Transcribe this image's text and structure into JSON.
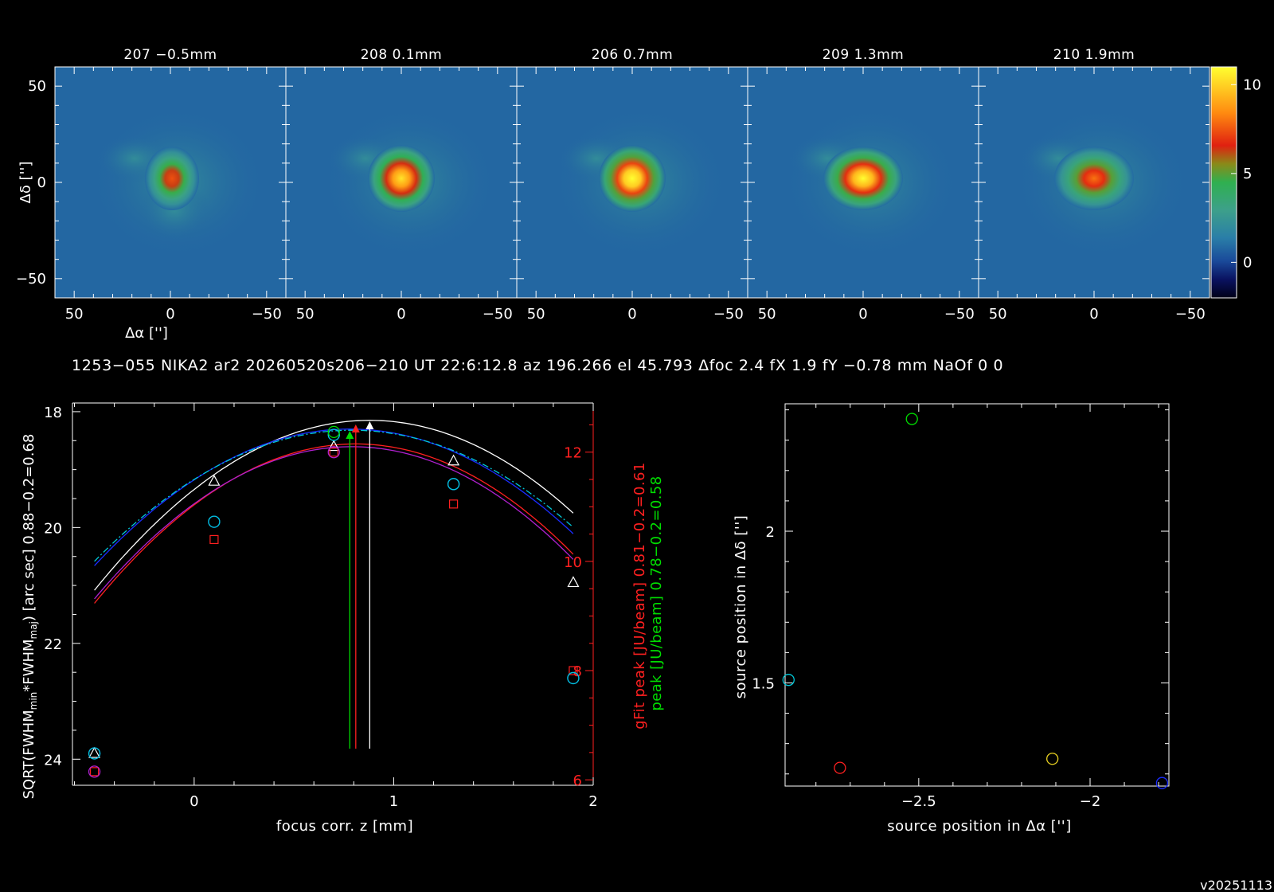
{
  "info_line": "1253−055 NIKA2 ar2 20260520s206−210 UT 22:6:12.8 az 196.266 el 45.793 Δfoc 2.4 fX 1.9 fY −0.78 mm NaOf 0 0",
  "version": "v20251113",
  "colors": {
    "background": "#000000",
    "axes": "#ffffff",
    "red": "#ff2020",
    "green": "#00dd00",
    "blue": "#1a2cff",
    "cyan": "#00c8d8",
    "magenta": "#b020d0",
    "yellow": "#e8d020"
  },
  "chart_data": [
    {
      "type": "heatmap",
      "panels": [
        {
          "title": "207 −0.5mm",
          "z": -0.5,
          "peak": 7.4,
          "extension": "extended lobe toward positive Δα and lower Δδ"
        },
        {
          "title": "208 0.1mm",
          "z": 0.1,
          "peak": 10.4,
          "extension": "faint lobe toward positive Δα"
        },
        {
          "title": "206 0.7mm",
          "z": 0.7,
          "peak": 11.6,
          "extension": "faint lobe toward positive Δα"
        },
        {
          "title": "209 1.3mm",
          "z": 1.3,
          "peak": 11.0,
          "extension": "slightly elongated in Δα"
        },
        {
          "title": "210 1.9mm",
          "z": 1.9,
          "peak": 8.0,
          "extension": "elongated in Δα"
        }
      ],
      "xlabel": "Δα ['']",
      "ylabel": "Δδ ['']",
      "xlim": [
        60,
        -60
      ],
      "ylim": [
        -60,
        60
      ],
      "xticks": [
        {
          "v": 50,
          "label": "50"
        },
        {
          "v": 0,
          "label": "0"
        },
        {
          "v": -50,
          "label": "−50"
        }
      ],
      "yticks": [
        {
          "v": 50,
          "label": "50"
        },
        {
          "v": 0,
          "label": "0"
        },
        {
          "v": -50,
          "label": "−50"
        }
      ],
      "colorbar": {
        "range": [
          -2,
          11
        ],
        "ticks": [
          {
            "v": 10,
            "label": "10"
          },
          {
            "v": 5,
            "label": "5"
          },
          {
            "v": 0,
            "label": "0"
          }
        ]
      }
    },
    {
      "type": "line",
      "xlabel": "focus corr. z [mm]",
      "ylabel_left": "SQRT(FWHM<sub>min</sub>*FWHM<sub>maj</sub>) [arc sec] 0.88−0.2=0.68",
      "ylabel_left_parts": {
        "a": "SQRT(FWHM",
        "sub1": "min",
        "b": "*FWHM",
        "sub2": "maj",
        "c": ") [arc sec] 0.88−0.2=0.68"
      },
      "ylabel_right_red": "gFit peak [JU/beam] 0.81−0.2=0.61",
      "ylabel_right_green": "peak [JU/beam] 0.78−0.2=0.58",
      "xlim": [
        -0.61,
        2.0
      ],
      "ylim_left": [
        24.45,
        17.85
      ],
      "ylim_right": [
        5.9,
        12.9
      ],
      "xticks": [
        {
          "v": 0,
          "label": "0"
        },
        {
          "v": 1,
          "label": "1"
        },
        {
          "v": 2,
          "label": "2"
        }
      ],
      "yticks_left": [
        {
          "v": 18,
          "label": "18"
        },
        {
          "v": 20,
          "label": "20"
        },
        {
          "v": 22,
          "label": "22"
        },
        {
          "v": 24,
          "label": "24"
        }
      ],
      "yticks_right": [
        {
          "v": 6,
          "label": "6"
        },
        {
          "v": 8,
          "label": "8"
        },
        {
          "v": 10,
          "label": "10"
        },
        {
          "v": 12,
          "label": "12"
        }
      ],
      "series": [
        {
          "color": "white",
          "marker": "triangle",
          "axis": "left",
          "x": [
            -0.5,
            0.1,
            0.7,
            1.3,
            1.9
          ],
          "y": [
            23.9,
            19.2,
            18.6,
            18.85,
            20.95
          ],
          "fit": {
            "vertex": 0.88,
            "ymin": 18.15,
            "curv": 3.85
          }
        },
        {
          "color": "red",
          "marker": "square",
          "axis": "right",
          "x": [
            -0.5,
            0.1,
            0.7,
            1.3,
            1.9
          ],
          "y": [
            6.15,
            10.4,
            12.0,
            11.05,
            8.0
          ],
          "fit": {
            "vertex": 0.81,
            "ymax": 12.15,
            "curv": 3.4
          }
        },
        {
          "color": "magenta",
          "marker": "circle",
          "axis": "right",
          "x": [
            -0.5,
            0.7
          ],
          "y": [
            6.15,
            12.0
          ],
          "fit": {
            "vertex": 0.79,
            "ymax": 12.1,
            "curv": 3.35
          }
        },
        {
          "color": "blue",
          "marker": "circle",
          "axis": "left",
          "x": [
            -0.5,
            0.1,
            0.7,
            1.3,
            1.9
          ],
          "y": [
            23.9,
            19.9,
            18.4,
            19.25,
            22.6
          ],
          "fit": {
            "vertex": 0.78,
            "ymin": 18.3,
            "curv": 3.6
          }
        },
        {
          "color": "cyan",
          "marker": "circle",
          "axis": "left",
          "x": [
            -0.5,
            0.1,
            0.7,
            1.3,
            1.9
          ],
          "y": [
            23.9,
            19.9,
            18.4,
            19.25,
            22.6
          ],
          "fit": {
            "vertex": 0.79,
            "ymin": 18.32,
            "curv": 3.4
          }
        },
        {
          "color": "green",
          "marker": "circle",
          "axis": "left",
          "x": [
            0.7
          ],
          "y": [
            18.35
          ]
        }
      ],
      "best_focus": [
        {
          "color": "white",
          "z": 0.88
        },
        {
          "color": "red",
          "z": 0.81
        },
        {
          "color": "green",
          "z": 0.78
        }
      ]
    },
    {
      "type": "scatter",
      "xlabel": "source position in Δα ['']",
      "ylabel": "source position in Δδ ['']",
      "xlim": [
        -2.89,
        -1.77
      ],
      "ylim": [
        1.16,
        2.42
      ],
      "xticks": [
        {
          "v": -2.5,
          "label": "−2.5"
        },
        {
          "v": -2,
          "label": "−2"
        }
      ],
      "yticks": [
        {
          "v": 2,
          "label": "2"
        },
        {
          "v": 1.5,
          "label": "1.5"
        }
      ],
      "points": [
        {
          "x": -2.88,
          "y": 1.51,
          "color": "cyan"
        },
        {
          "x": -2.73,
          "y": 1.22,
          "color": "red"
        },
        {
          "x": -2.52,
          "y": 2.37,
          "color": "green"
        },
        {
          "x": -2.11,
          "y": 1.25,
          "color": "yellow"
        },
        {
          "x": -1.79,
          "y": 1.17,
          "color": "blue"
        }
      ]
    }
  ]
}
